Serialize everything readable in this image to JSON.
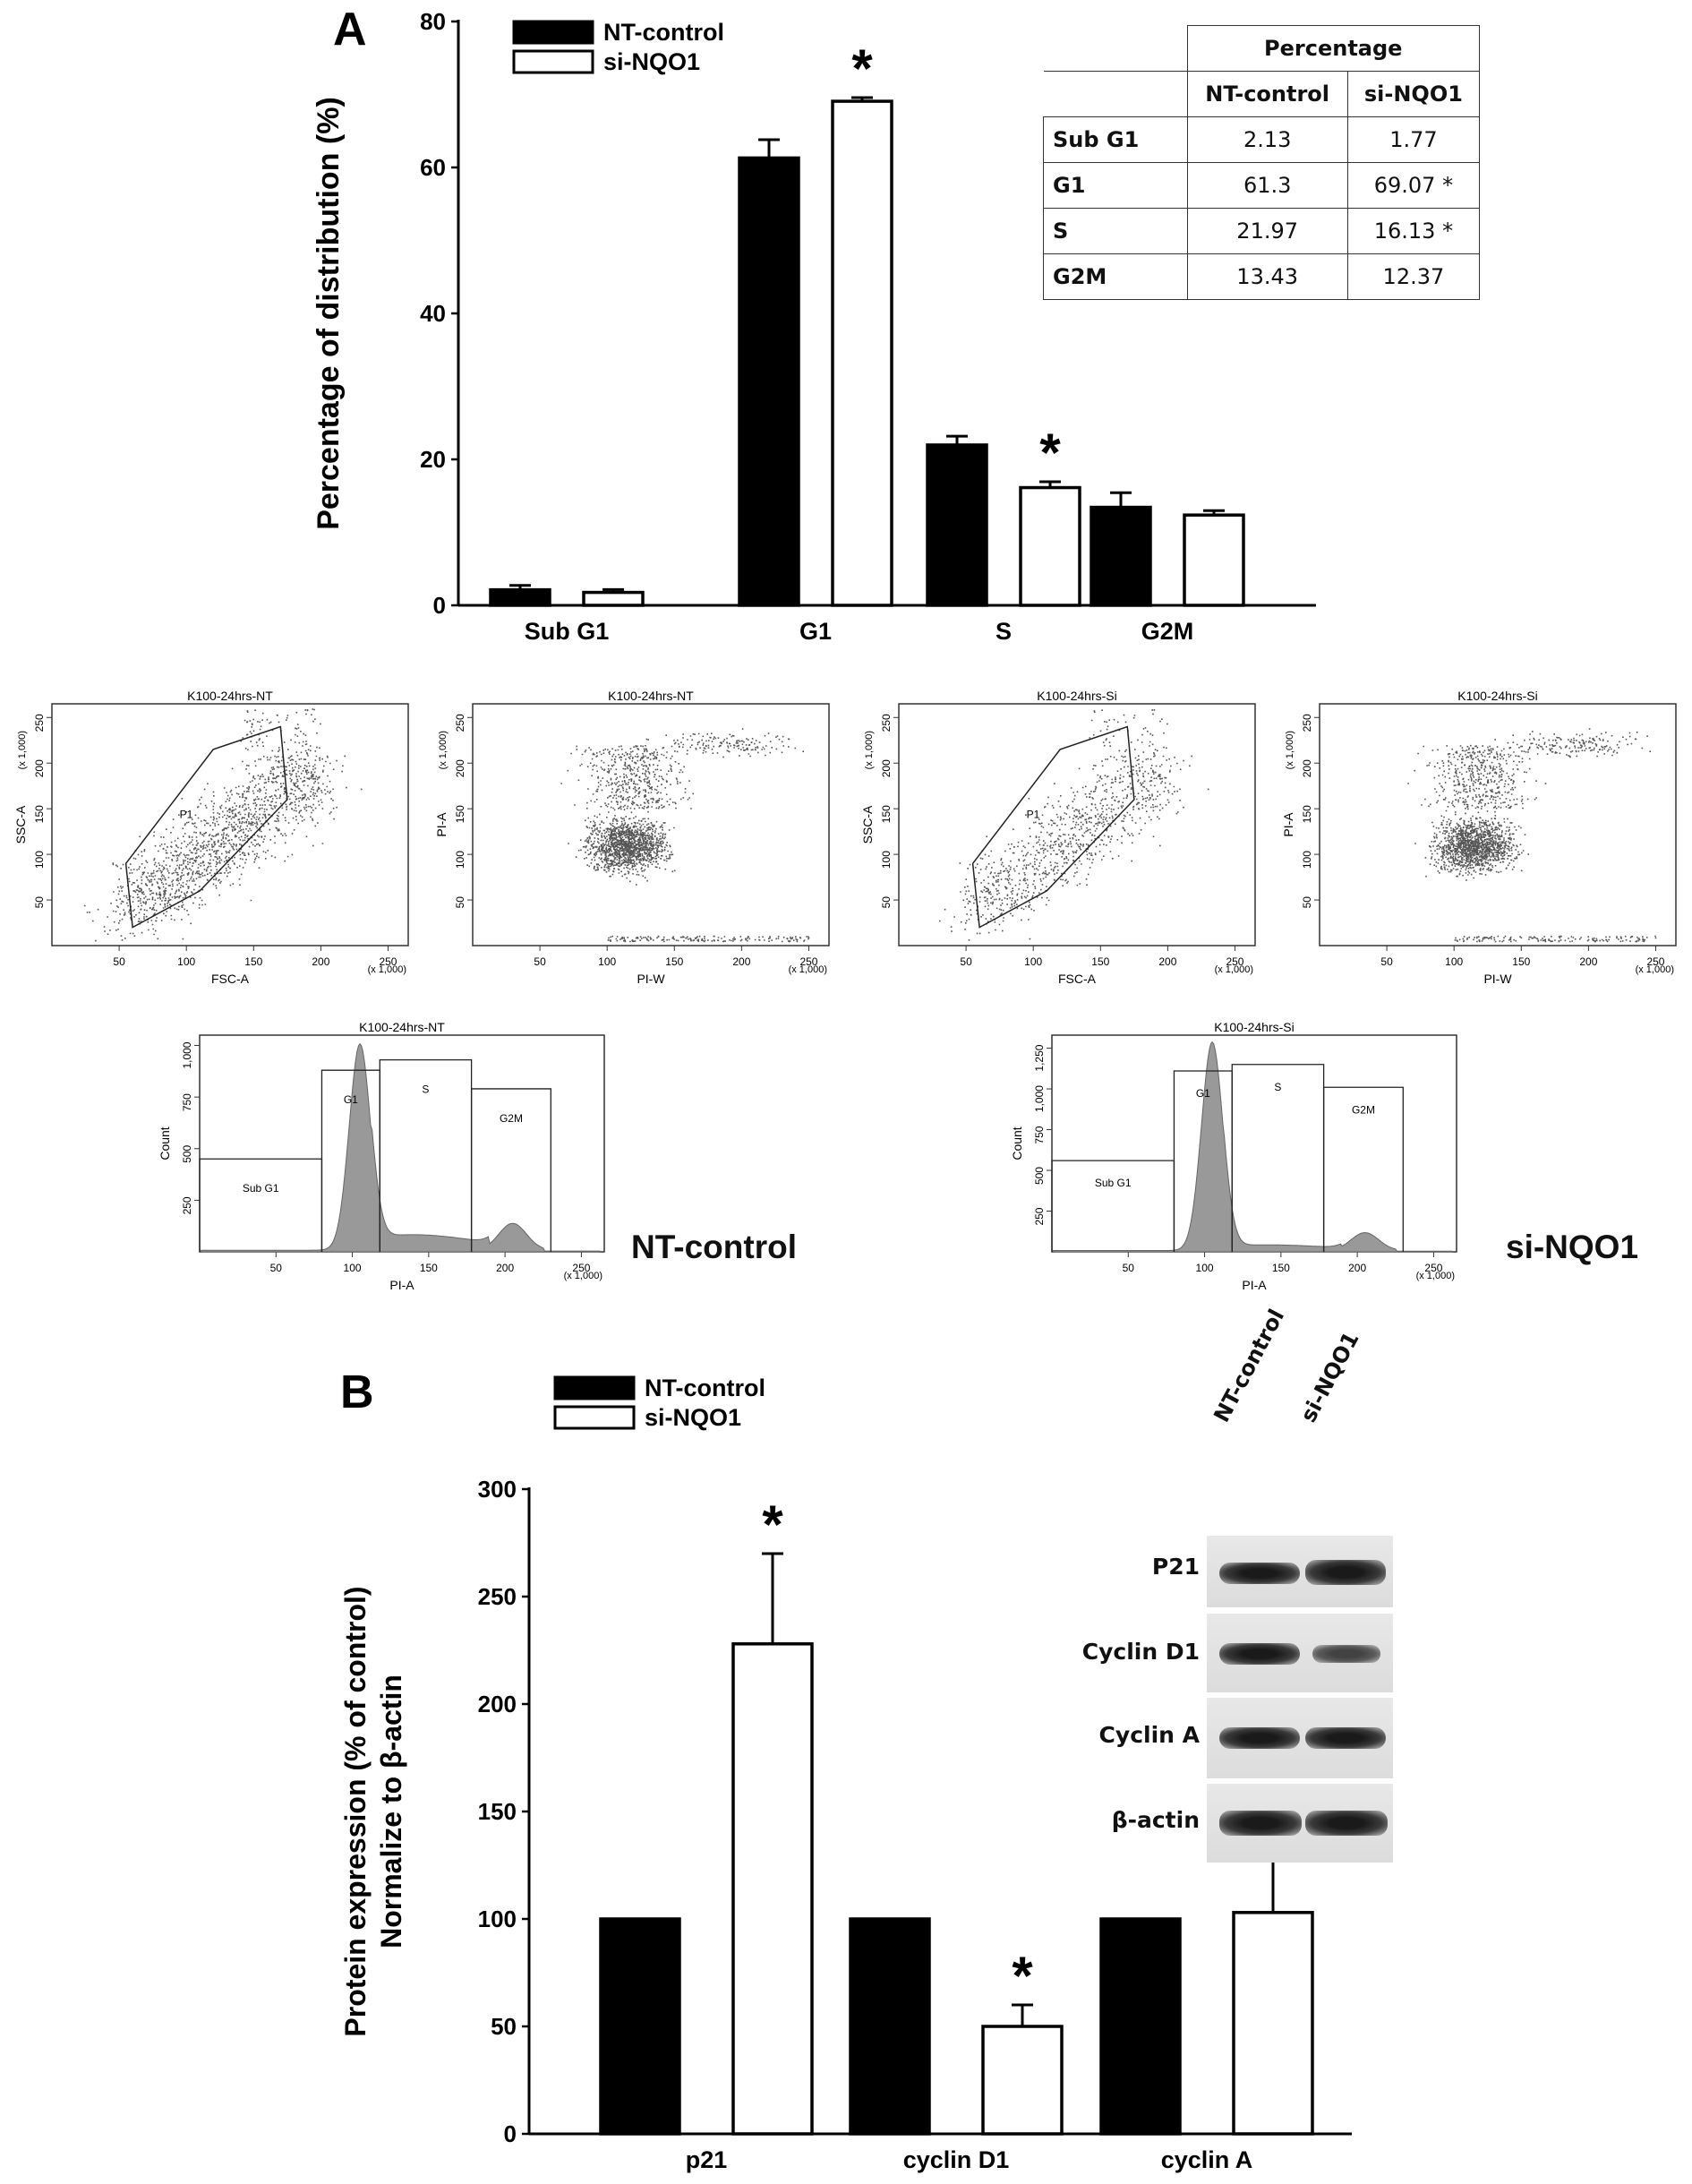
{
  "panel_a": {
    "label": "A",
    "chart_data": {
      "type": "bar",
      "categories": [
        "Sub G1",
        "G1",
        "S",
        "G2M"
      ],
      "series": [
        {
          "name": "NT-control",
          "values": [
            2.13,
            61.3,
            21.97,
            13.43
          ],
          "errors": [
            0.6,
            2.5,
            1.2,
            2.0
          ],
          "fill": "#000000"
        },
        {
          "name": "si-NQO1",
          "values": [
            1.77,
            69.07,
            16.13,
            12.37
          ],
          "errors": [
            0.4,
            0.5,
            0.8,
            0.6
          ],
          "fill": "#ffffff"
        }
      ],
      "significant": [
        [
          false,
          false
        ],
        [
          false,
          true
        ],
        [
          false,
          true
        ],
        [
          false,
          false
        ]
      ],
      "ylabel": "Percentage of distribution (%)",
      "ylim": [
        0,
        80
      ],
      "yticks": [
        0,
        20,
        40,
        60,
        80
      ],
      "legend": "top-left"
    },
    "table": {
      "header_group": "Percentage",
      "columns": [
        "NT-control",
        "si-NQO1"
      ],
      "rows": [
        {
          "label": "Sub G1",
          "nt": "2.13",
          "si": "1.77"
        },
        {
          "label": "G1",
          "nt": "61.3",
          "si": "69.07 *"
        },
        {
          "label": "S",
          "nt": "21.97",
          "si": "16.13 *"
        },
        {
          "label": "G2M",
          "nt": "13.43",
          "si": "12.37"
        }
      ]
    }
  },
  "flow": {
    "scatter_plots": [
      {
        "title": "K100-24hrs-NT",
        "xlabel": "FSC-A",
        "ylabel": "SSC-A",
        "gate": "P1",
        "unit": "(x 1,000)"
      },
      {
        "title": "K100-24hrs-NT",
        "xlabel": "PI-W",
        "ylabel": "PI-A",
        "unit": "(x 1,000)"
      },
      {
        "title": "K100-24hrs-Si",
        "xlabel": "FSC-A",
        "ylabel": "SSC-A",
        "gate": "P1",
        "unit": "(x 1,000)"
      },
      {
        "title": "K100-24hrs-Si",
        "xlabel": "PI-W",
        "ylabel": "PI-A",
        "unit": "(x 1,000)"
      }
    ],
    "scatter_xticks": [
      "50",
      "100",
      "150",
      "200",
      "250"
    ],
    "scatter_yticks": [
      "50",
      "100",
      "150",
      "200",
      "250"
    ],
    "histograms": [
      {
        "title": "K100-24hrs-NT",
        "xlabel": "PI-A",
        "ylabel": "Count",
        "unit": "(x 1,000)",
        "yticks": [
          "250",
          "500",
          "750",
          "1,000"
        ],
        "ymax": 1050,
        "gates": [
          "Sub G1",
          "G1",
          "S",
          "G2M"
        ],
        "caption": "NT-control"
      },
      {
        "title": "K100-24hrs-Si",
        "xlabel": "PI-A",
        "ylabel": "Count",
        "unit": "(x 1,000)",
        "yticks": [
          "250",
          "500",
          "750",
          "1,000",
          "1,250"
        ],
        "ymax": 1330,
        "gates": [
          "Sub G1",
          "G1",
          "S",
          "G2M"
        ],
        "caption": "si-NQO1"
      }
    ],
    "hist_xticks": [
      "50",
      "100",
      "150",
      "200",
      "250"
    ]
  },
  "panel_b": {
    "label": "B",
    "chart_data": {
      "type": "bar",
      "categories": [
        "p21",
        "cyclin D1",
        "cyclin A"
      ],
      "series": [
        {
          "name": "NT-control",
          "values": [
            100,
            100,
            100
          ],
          "errors": [
            0,
            0,
            0
          ],
          "fill": "#000000"
        },
        {
          "name": "si-NQO1",
          "values": [
            228,
            50,
            103
          ],
          "errors": [
            42,
            10,
            24
          ],
          "fill": "#ffffff"
        }
      ],
      "significant": [
        [
          false,
          true
        ],
        [
          false,
          true
        ],
        [
          false,
          false
        ]
      ],
      "ylabel_line1": "Protein expression (% of control)",
      "ylabel_line2": "Normalize to β-actin",
      "ylim": [
        0,
        300
      ],
      "yticks": [
        0,
        50,
        100,
        150,
        200,
        250,
        300
      ],
      "legend": "top-left"
    },
    "blot": {
      "lanes": [
        "NT-control",
        "si-NQO1"
      ],
      "bands": [
        "P21",
        "Cyclin D1",
        "Cyclin A",
        "β-actin"
      ]
    }
  }
}
